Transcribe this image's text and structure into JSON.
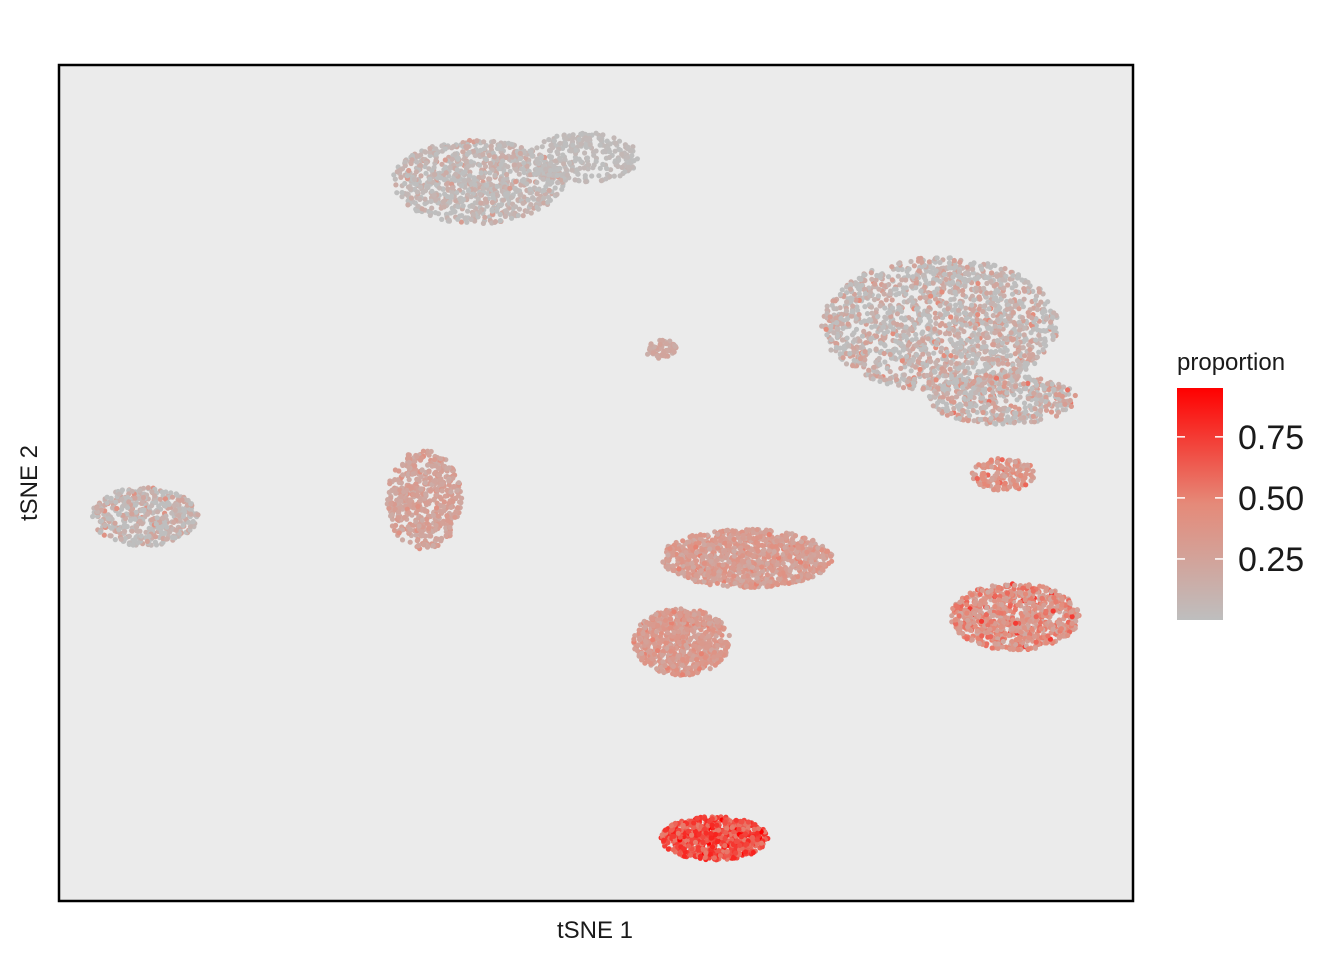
{
  "chart_data": {
    "type": "scatter",
    "title": "",
    "xlabel": "tSNE 1",
    "ylabel": "tSNE 2",
    "x_ticks_shown": false,
    "y_ticks_shown": false,
    "panel_background": "#ebebeb",
    "panel_border": "#000000",
    "grid": false,
    "legend": {
      "title": "proportion",
      "placement": "right",
      "type": "continuous colorbar",
      "ticks": [
        "0.25",
        "0.50",
        "0.75"
      ],
      "tick_values": [
        0.25,
        0.5,
        0.75
      ],
      "range": [
        0.0,
        0.95
      ],
      "color_low": "#bebebe",
      "color_high": "#ff0000"
    },
    "note": "single-cell t-SNE embedding; axis scale not printed, clusters described in panel-relative units (0-100)",
    "clusters": [
      {
        "id": "top-cluster",
        "cx": 39,
        "cy": 86,
        "rx": 8,
        "ry": 5,
        "n": 900,
        "mean_proportion": 0.04,
        "max_proportion": 0.3
      },
      {
        "id": "top-tail",
        "cx": 49,
        "cy": 89,
        "rx": 5,
        "ry": 3,
        "n": 260,
        "mean_proportion": 0.02,
        "max_proportion": 0.1
      },
      {
        "id": "right-upper-large",
        "cx": 82,
        "cy": 69,
        "rx": 11,
        "ry": 8,
        "n": 1600,
        "mean_proportion": 0.05,
        "max_proportion": 0.45
      },
      {
        "id": "right-upper-tail",
        "cx": 88,
        "cy": 60,
        "rx": 7,
        "ry": 3,
        "n": 450,
        "mean_proportion": 0.08,
        "max_proportion": 0.55
      },
      {
        "id": "small-center",
        "cx": 56,
        "cy": 66,
        "rx": 1.5,
        "ry": 1.2,
        "n": 60,
        "mean_proportion": 0.2,
        "max_proportion": 0.3
      },
      {
        "id": "left-cluster",
        "cx": 8,
        "cy": 46,
        "rx": 5,
        "ry": 3.5,
        "n": 450,
        "mean_proportion": 0.05,
        "max_proportion": 0.4
      },
      {
        "id": "mid-left-cluster",
        "cx": 34,
        "cy": 48,
        "rx": 3.5,
        "ry": 6,
        "n": 550,
        "mean_proportion": 0.25,
        "max_proportion": 0.4
      },
      {
        "id": "center-right-upper",
        "cx": 64,
        "cy": 41,
        "rx": 8,
        "ry": 3.5,
        "n": 1000,
        "mean_proportion": 0.3,
        "max_proportion": 0.5
      },
      {
        "id": "center-lower",
        "cx": 58,
        "cy": 31,
        "rx": 4.5,
        "ry": 4,
        "n": 700,
        "mean_proportion": 0.32,
        "max_proportion": 0.5
      },
      {
        "id": "right-small",
        "cx": 88,
        "cy": 51,
        "rx": 3,
        "ry": 2,
        "n": 150,
        "mean_proportion": 0.35,
        "max_proportion": 0.6
      },
      {
        "id": "right-lower",
        "cx": 89,
        "cy": 34,
        "rx": 6,
        "ry": 4,
        "n": 800,
        "mean_proportion": 0.4,
        "max_proportion": 0.75
      },
      {
        "id": "bottom-cluster",
        "cx": 61,
        "cy": 7.5,
        "rx": 5,
        "ry": 2.6,
        "n": 650,
        "mean_proportion": 0.68,
        "max_proportion": 0.95
      }
    ]
  }
}
